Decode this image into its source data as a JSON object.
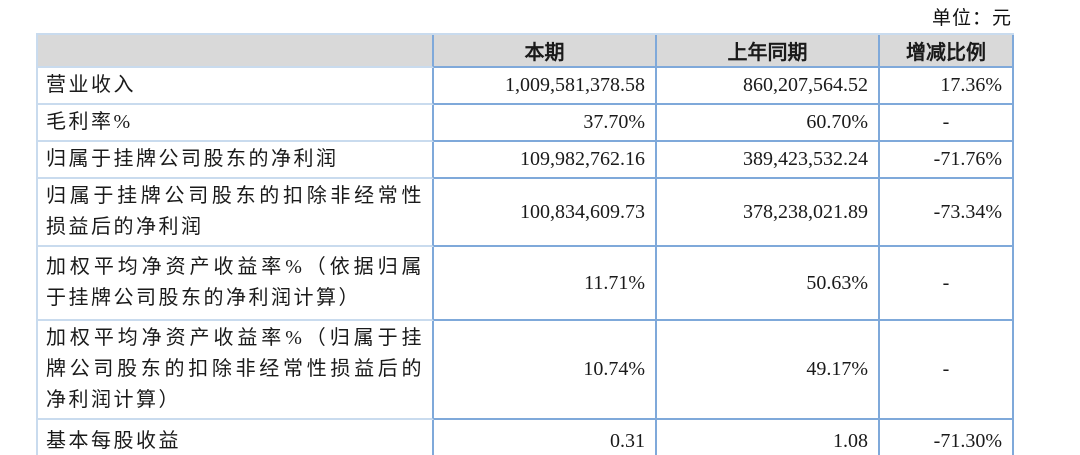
{
  "unit_note": "单位：元",
  "colors": {
    "border_strong": "#7fa9da",
    "border_light": "#c9dbee",
    "header_bg": "#d9d9d9"
  },
  "table": {
    "headers": [
      "",
      "本期",
      "上年同期",
      "增减比例"
    ],
    "rows": [
      {
        "label": "营业收入",
        "current": "1,009,581,378.58",
        "prior": "860,207,564.52",
        "change": "17.36%"
      },
      {
        "label": "毛利率%",
        "current": "37.70%",
        "prior": "60.70%",
        "change": "-"
      },
      {
        "label": "归属于挂牌公司股东的净利润",
        "current": "109,982,762.16",
        "prior": "389,423,532.24",
        "change": "-71.76%"
      },
      {
        "label": "归属于挂牌公司股东的扣除非经常性损益后的净利润",
        "current": "100,834,609.73",
        "prior": "378,238,021.89",
        "change": "-73.34%"
      },
      {
        "label": "加权平均净资产收益率%（依据归属于挂牌公司股东的净利润计算）",
        "current": "11.71%",
        "prior": "50.63%",
        "change": "-"
      },
      {
        "label": "加权平均净资产收益率%（归属于挂牌公司股东的扣除非经常性损益后的净利润计算）",
        "current": "10.74%",
        "prior": "49.17%",
        "change": "-"
      },
      {
        "label": "基本每股收益",
        "current": "0.31",
        "prior": "1.08",
        "change": "-71.30%"
      }
    ]
  }
}
